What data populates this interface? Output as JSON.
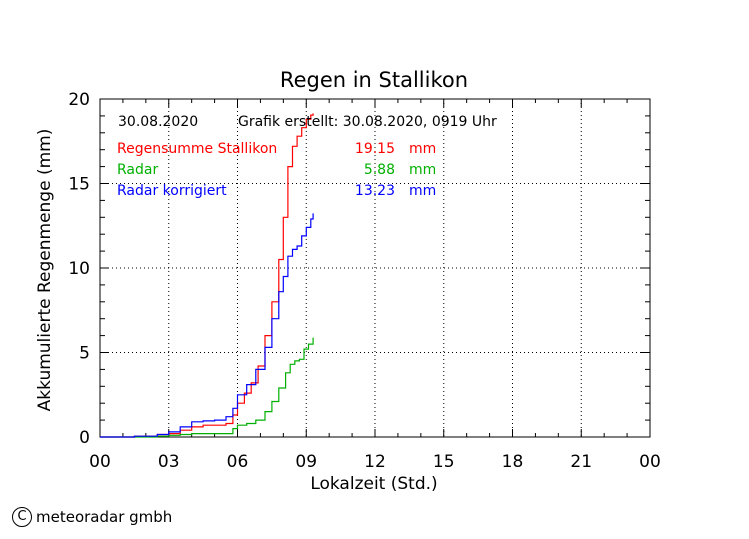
{
  "chart_data": {
    "type": "line",
    "title": "Regen in Stallikon",
    "xlabel": "Lokalzeit (Std.)",
    "ylabel": "Akkumulierte Regenmenge (mm)",
    "xlim": [
      0,
      24
    ],
    "ylim": [
      0,
      20
    ],
    "x_ticks": [
      "00",
      "03",
      "06",
      "09",
      "12",
      "15",
      "18",
      "21",
      "00"
    ],
    "y_ticks": [
      "0",
      "5",
      "10",
      "15",
      "20"
    ],
    "grid": true,
    "date": "30.08.2020",
    "created": "Grafik erstellt: 30.08.2020, 0919 Uhr",
    "legend": [
      {
        "name": "Regensumme Stallikon",
        "value": "19.15",
        "unit": "mm",
        "color": "#ff0000"
      },
      {
        "name": "Radar",
        "value": "5.88",
        "unit": "mm",
        "color": "#00b000"
      },
      {
        "name": "Radar korrigiert",
        "value": "13.23",
        "unit": "mm",
        "color": "#0000ff"
      }
    ],
    "series": [
      {
        "name": "Regensumme Stallikon",
        "color": "#ff0000",
        "x": [
          0,
          1.5,
          2.5,
          3.0,
          3.5,
          4.0,
          4.5,
          5.0,
          5.5,
          5.8,
          6.0,
          6.3,
          6.6,
          6.9,
          7.2,
          7.5,
          7.8,
          8.0,
          8.2,
          8.4,
          8.6,
          8.8,
          9.0,
          9.2,
          9.3
        ],
        "y": [
          0,
          0.05,
          0.15,
          0.2,
          0.4,
          0.6,
          0.7,
          0.7,
          0.8,
          1.3,
          2.0,
          2.6,
          3.2,
          4.2,
          6.0,
          8.0,
          10.5,
          13.0,
          16.0,
          17.2,
          17.8,
          18.3,
          18.8,
          19.05,
          19.15
        ]
      },
      {
        "name": "Radar",
        "color": "#00b000",
        "x": [
          0,
          1.5,
          2.5,
          3.0,
          3.5,
          4.0,
          4.5,
          5.0,
          5.5,
          5.8,
          6.0,
          6.4,
          6.8,
          7.2,
          7.5,
          7.8,
          8.1,
          8.3,
          8.5,
          8.7,
          8.9,
          9.1,
          9.3
        ],
        "y": [
          0,
          0,
          0.05,
          0.1,
          0.15,
          0.2,
          0.2,
          0.2,
          0.2,
          0.5,
          0.7,
          0.8,
          1.0,
          1.5,
          2.1,
          2.9,
          3.8,
          4.3,
          4.5,
          4.6,
          5.2,
          5.5,
          5.88
        ]
      },
      {
        "name": "Radar korrigiert",
        "color": "#0000ff",
        "x": [
          0,
          1.5,
          2.5,
          3.0,
          3.5,
          4.0,
          4.5,
          5.0,
          5.5,
          5.8,
          6.0,
          6.4,
          6.8,
          7.2,
          7.5,
          7.8,
          8.0,
          8.2,
          8.4,
          8.6,
          8.8,
          9.0,
          9.2,
          9.3
        ],
        "y": [
          0,
          0.05,
          0.15,
          0.3,
          0.6,
          0.9,
          0.95,
          1.0,
          1.2,
          1.7,
          2.5,
          3.1,
          4.0,
          5.3,
          7.0,
          8.6,
          9.5,
          10.7,
          11.1,
          11.3,
          11.9,
          12.4,
          12.9,
          13.23
        ]
      }
    ]
  },
  "footer": {
    "copyright_symbol": "C",
    "copyright_text": "meteoradar gmbh"
  }
}
